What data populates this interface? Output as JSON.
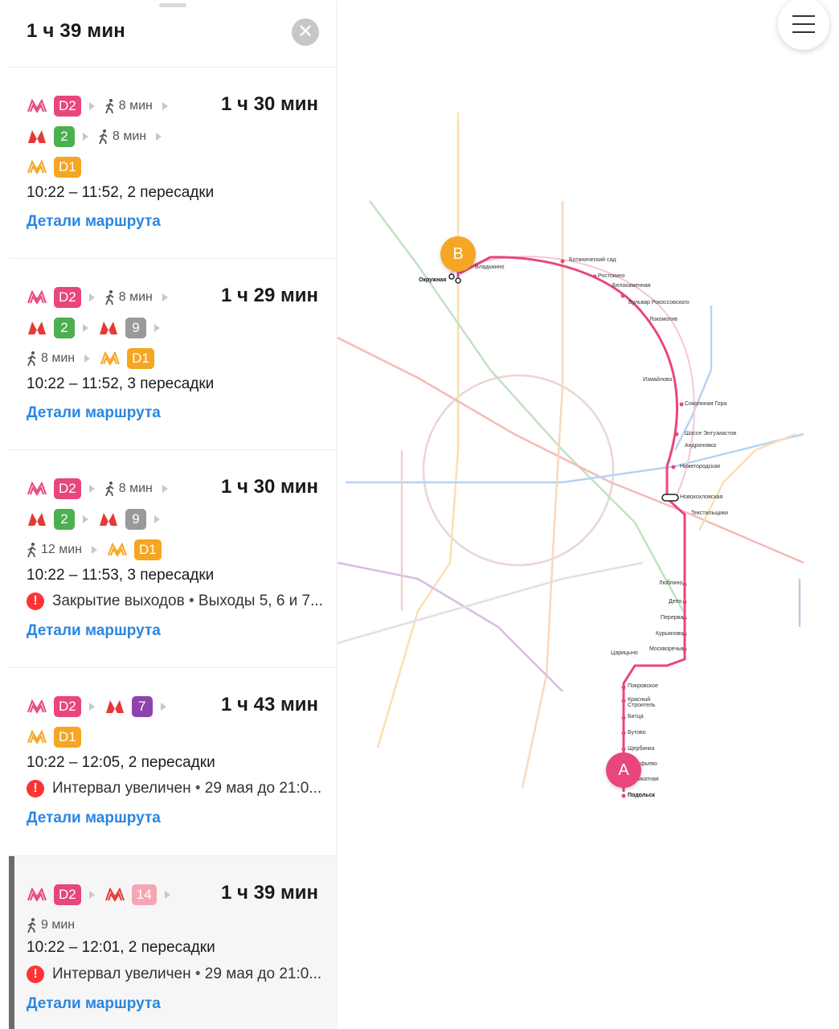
{
  "panel": {
    "title": "1 ч 39 мин",
    "close_icon": "close-icon"
  },
  "routes": [
    {
      "duration": "1 ч 30 мин",
      "row1": {
        "d2": "D2",
        "walk": "8 мин"
      },
      "row2": {
        "line": "2",
        "walk": "8 мин"
      },
      "row3": {
        "d1": "D1"
      },
      "times": "10:22 – 11:52, 2 пересадки",
      "details": "Детали маршрута"
    },
    {
      "duration": "1 ч 29 мин",
      "row1": {
        "d2": "D2",
        "walk": "8 мин"
      },
      "row2": {
        "line1": "2",
        "line2": "9"
      },
      "row3": {
        "walk": "8 мин",
        "d1": "D1"
      },
      "times": "10:22 – 11:52, 3 пересадки",
      "details": "Детали маршрута"
    },
    {
      "duration": "1 ч 30 мин",
      "row1": {
        "d2": "D2",
        "walk": "8 мин"
      },
      "row2": {
        "line1": "2",
        "line2": "9"
      },
      "row3": {
        "walk": "12 мин",
        "d1": "D1"
      },
      "times": "10:22 – 11:53, 3 пересадки",
      "alert": {
        "title": "Закрытие выходов",
        "sep": " • ",
        "text": "Выходы 5, 6 и 7..."
      },
      "details": "Детали маршрута"
    },
    {
      "duration": "1 ч 43 мин",
      "row1": {
        "d2": "D2",
        "line": "7"
      },
      "row2": {
        "d1": "D1"
      },
      "times": "10:22 – 12:05, 2 пересадки",
      "alert": {
        "title": "Интервал увеличен",
        "sep": " • ",
        "text": "29 мая до 21:0..."
      },
      "details": "Детали маршрута"
    },
    {
      "duration": "1 ч 39 мин",
      "row1": {
        "d2": "D2",
        "line": "14"
      },
      "row2": {
        "walk": "9 мин"
      },
      "times": "10:22 – 12:01, 2 пересадки",
      "alert": {
        "title": "Интервал увеличен",
        "sep": " • ",
        "text": "29 мая до 21:0..."
      },
      "details": "Детали маршрута"
    }
  ],
  "colors": {
    "d2": "#e8467c",
    "d1": "#f5a623",
    "line2": "#4caf50",
    "line9": "#999999",
    "line7": "#8e44ad",
    "line14": "#f4a7b3",
    "metro_red": "#e53935",
    "link": "#2a86e0"
  },
  "map": {
    "pin_a": "A",
    "pin_b": "B",
    "menu_icon": "hamburger-icon",
    "stations_route": [
      "Окружная",
      "Владыкино",
      "Ботанический сад",
      "Ростокино",
      "Белокаменная",
      "Бульвар Рокоссовского",
      "Локомотив",
      "Измайлово",
      "Соколиная Гора",
      "Шоссе Энтузиастов",
      "Андроновка",
      "Нижегородская",
      "Новохохловская",
      "Текстильщики",
      "Люблино",
      "Депо",
      "Перерва",
      "Курьяново",
      "Москворечье",
      "Царицыно",
      "Покровское",
      "Красный Строитель",
      "Битца",
      "Бутово",
      "Щербинка",
      "Остафьево",
      "Силикатная",
      "Подольск"
    ]
  }
}
